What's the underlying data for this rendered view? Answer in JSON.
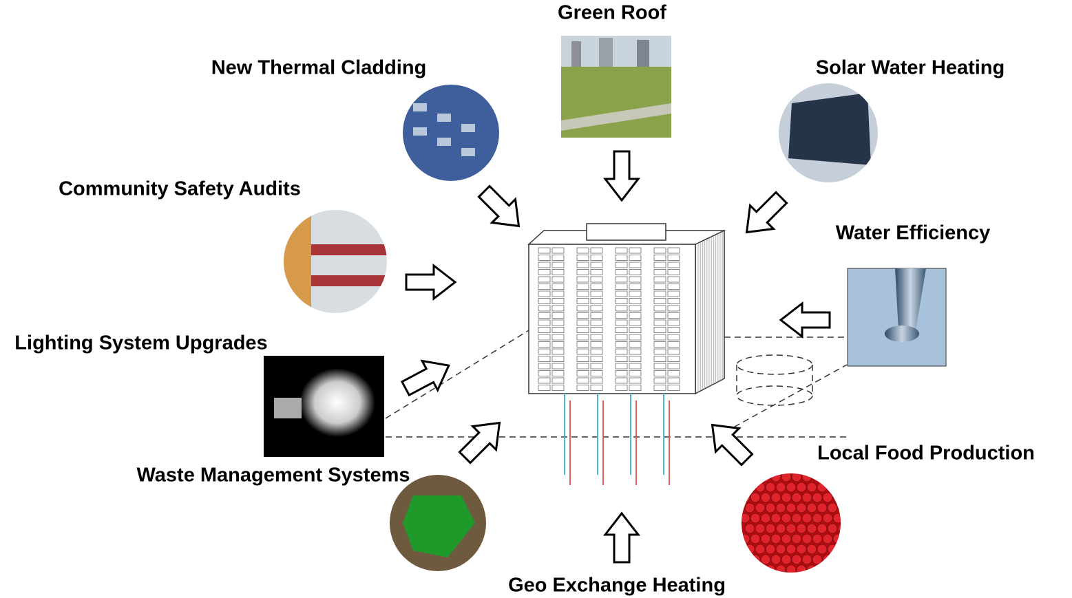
{
  "nodes": [
    {
      "label": "Green Roof"
    },
    {
      "label": "New Thermal Cladding"
    },
    {
      "label": "Solar Water Heating"
    },
    {
      "label": "Community Safety Audits"
    },
    {
      "label": "Water Efficiency"
    },
    {
      "label": "Lighting System Upgrades"
    },
    {
      "label": "Waste Management Systems"
    },
    {
      "label": "Local Food Production"
    },
    {
      "label": "Geo Exchange Heating"
    }
  ]
}
